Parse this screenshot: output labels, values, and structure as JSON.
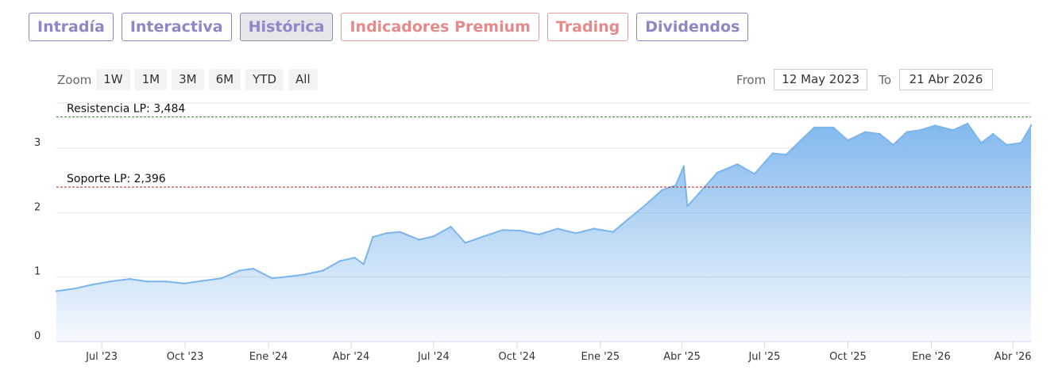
{
  "tabs": [
    {
      "label": "Intradía",
      "style": "normal"
    },
    {
      "label": "Interactiva",
      "style": "normal"
    },
    {
      "label": "Histórica",
      "style": "active"
    },
    {
      "label": "Indicadores Premium",
      "style": "premium"
    },
    {
      "label": "Trading",
      "style": "premium"
    },
    {
      "label": "Dividendos",
      "style": "normal"
    }
  ],
  "range_selector": {
    "zoom_label": "Zoom",
    "buttons": [
      "1W",
      "1M",
      "3M",
      "6M",
      "YTD",
      "All"
    ],
    "from_label": "From",
    "from_value": "12 May 2023",
    "to_label": "To",
    "to_value": "21 Abr 2026"
  },
  "colors": {
    "tab_normal": "#8f86c6",
    "tab_premium": "#e48a8a",
    "series_line": "#7cb5ec",
    "resistance": "#2e7d32",
    "support": "#b71c1c"
  },
  "chart_data": {
    "type": "area",
    "title": "",
    "xlabel": "",
    "ylabel": "",
    "ylim": [
      0,
      3.7
    ],
    "yticks": [
      0,
      1,
      2,
      3
    ],
    "xlim": [
      "2023-05-12",
      "2026-04-21"
    ],
    "xticks": [
      {
        "date": "2023-07-01",
        "label": "Jul '23"
      },
      {
        "date": "2023-10-01",
        "label": "Oct '23"
      },
      {
        "date": "2024-01-01",
        "label": "Ene '24"
      },
      {
        "date": "2024-04-01",
        "label": "Abr '24"
      },
      {
        "date": "2024-07-01",
        "label": "Jul '24"
      },
      {
        "date": "2024-10-01",
        "label": "Oct '24"
      },
      {
        "date": "2025-01-01",
        "label": "Ene '25"
      },
      {
        "date": "2025-04-01",
        "label": "Abr '25"
      },
      {
        "date": "2025-07-01",
        "label": "Jul '25"
      },
      {
        "date": "2025-10-01",
        "label": "Oct '25"
      },
      {
        "date": "2026-01-01",
        "label": "Ene '26"
      },
      {
        "date": "2026-04-01",
        "label": "Abr '26"
      }
    ],
    "grid": true,
    "plot_lines": [
      {
        "name": "resistance",
        "label": "Resistencia LP: 3,484",
        "value": 3.484,
        "style": "dashed"
      },
      {
        "name": "support",
        "label": "Soporte LP: 2,396",
        "value": 2.396,
        "style": "dashed"
      }
    ],
    "series": [
      {
        "x": [
          "2023-05-12",
          "2023-06-01",
          "2023-06-20",
          "2023-07-10",
          "2023-08-01",
          "2023-08-20",
          "2023-09-10",
          "2023-09-30",
          "2023-10-20",
          "2023-11-10",
          "2023-11-30",
          "2023-12-15",
          "2024-01-05",
          "2024-01-25",
          "2024-02-10",
          "2024-03-01",
          "2024-03-20",
          "2024-04-05",
          "2024-04-15",
          "2024-04-25",
          "2024-05-10",
          "2024-05-25",
          "2024-06-15",
          "2024-07-01",
          "2024-07-20",
          "2024-08-05",
          "2024-08-25",
          "2024-09-15",
          "2024-10-05",
          "2024-10-25",
          "2024-11-15",
          "2024-12-05",
          "2024-12-25",
          "2025-01-15",
          "2025-02-01",
          "2025-02-20",
          "2025-03-10",
          "2025-03-25",
          "2025-04-03",
          "2025-04-07",
          "2025-04-20",
          "2025-05-10",
          "2025-06-01",
          "2025-06-20",
          "2025-07-10",
          "2025-07-25",
          "2025-08-10",
          "2025-08-25",
          "2025-09-15",
          "2025-10-01",
          "2025-10-20",
          "2025-11-05",
          "2025-11-20",
          "2025-12-05",
          "2025-12-20",
          "2026-01-05",
          "2026-01-25",
          "2026-02-10",
          "2026-02-25",
          "2026-03-10",
          "2026-03-25",
          "2026-04-10",
          "2026-04-21"
        ],
        "y": [
          0.78,
          0.82,
          0.88,
          0.93,
          0.97,
          0.93,
          0.93,
          0.9,
          0.94,
          0.98,
          1.1,
          1.13,
          0.98,
          1.01,
          1.04,
          1.1,
          1.25,
          1.3,
          1.2,
          1.62,
          1.68,
          1.7,
          1.58,
          1.63,
          1.78,
          1.53,
          1.63,
          1.73,
          1.72,
          1.66,
          1.75,
          1.68,
          1.75,
          1.7,
          1.9,
          2.12,
          2.35,
          2.42,
          2.72,
          2.1,
          2.3,
          2.62,
          2.75,
          2.6,
          2.92,
          2.9,
          3.12,
          3.32,
          3.32,
          3.12,
          3.25,
          3.22,
          3.05,
          3.25,
          3.28,
          3.35,
          3.28,
          3.38,
          3.08,
          3.22,
          3.05,
          3.08,
          3.35
        ]
      }
    ]
  }
}
